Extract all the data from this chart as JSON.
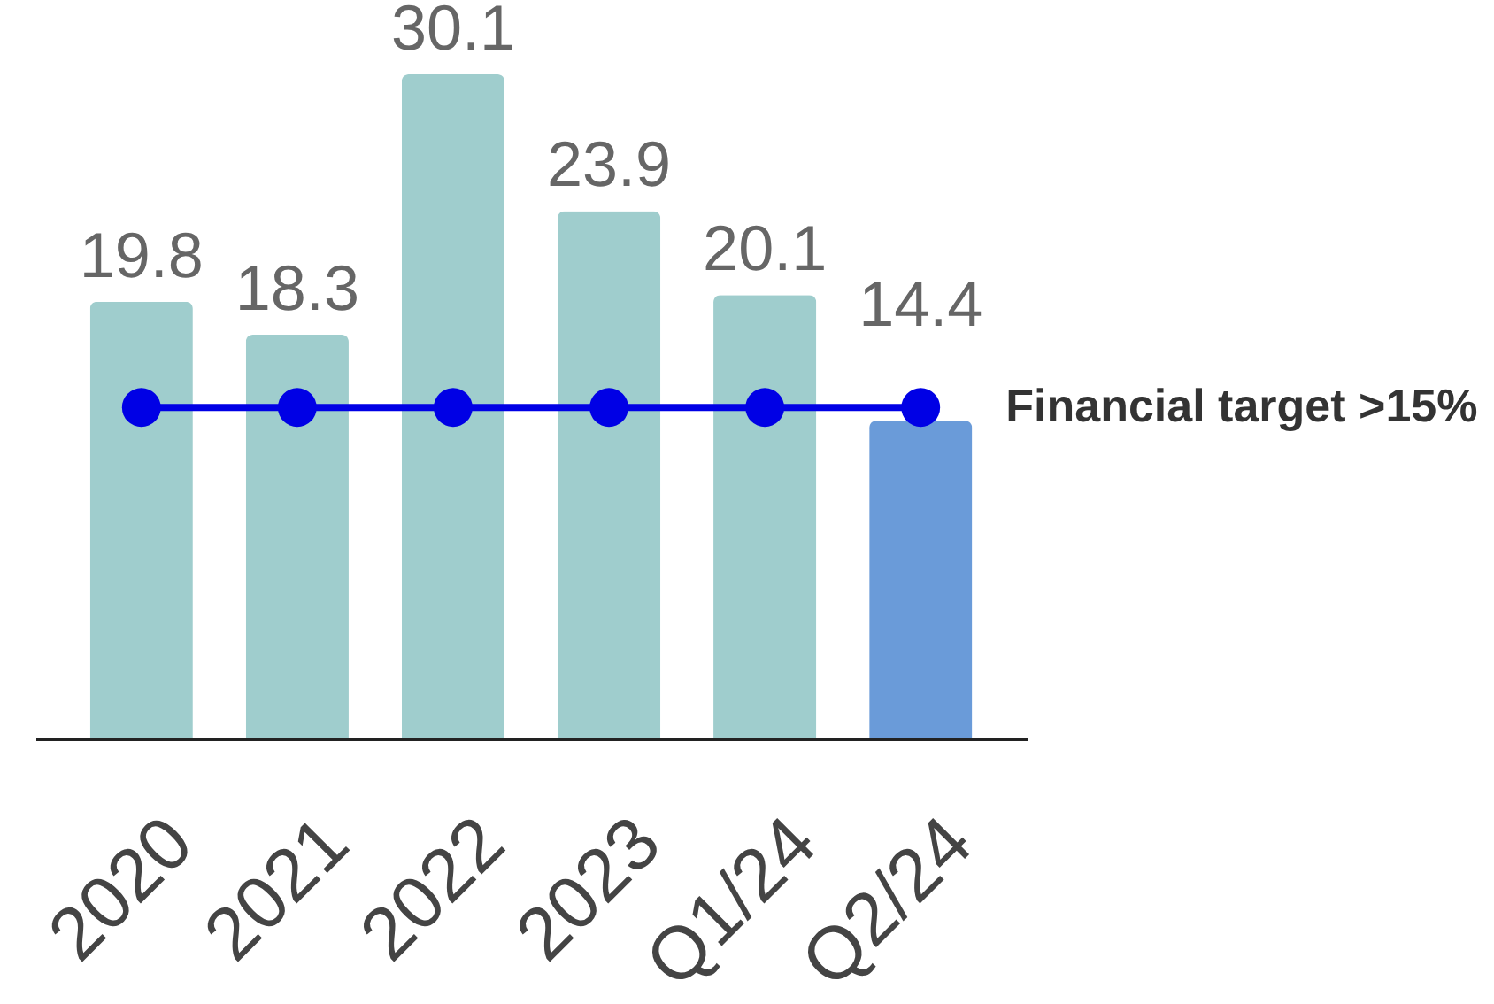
{
  "chart_data": {
    "type": "bar",
    "categories": [
      "2020",
      "2021",
      "2022",
      "2023",
      "Q1/24",
      "Q2/24"
    ],
    "tick_labels": "x",
    "marker": "circle",
    "line_style": "solid",
    "series": [
      {
        "colors": [
          "#9fcdcd",
          "#9fcdcd",
          "#9fcdcd",
          "#9fcdcd",
          "#9fcdcd",
          "#6a9bd9"
        ],
        "values": [
          19.8,
          18.3,
          30.1,
          23.9,
          20.1,
          14.4
        ],
        "value_labels": [
          "19.8",
          "18.3",
          "30.1",
          "23.9",
          "20.1",
          "14.4"
        ]
      },
      {
        "type": "line",
        "name": "Financial target >15%",
        "color": "#0000e5",
        "values": [
          15,
          15,
          15,
          15,
          15,
          15
        ]
      }
    ]
  }
}
